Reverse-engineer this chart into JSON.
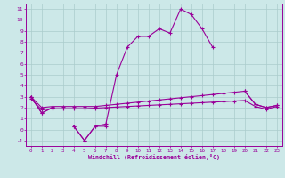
{
  "xlabel": "Windchill (Refroidissement éolien,°C)",
  "x_values": [
    0,
    1,
    2,
    3,
    4,
    5,
    6,
    7,
    8,
    9,
    10,
    11,
    12,
    13,
    14,
    15,
    16,
    17,
    18,
    19,
    20,
    21,
    22,
    23
  ],
  "line_zigzag": [
    3.0,
    1.5,
    2.0,
    null,
    0.3,
    -1.0,
    0.3,
    0.3,
    null,
    null,
    null,
    null,
    null,
    null,
    null,
    null,
    null,
    null,
    null,
    null,
    null,
    null,
    null,
    null
  ],
  "line_peak": [
    3.0,
    1.5,
    2.0,
    null,
    0.3,
    -1.0,
    0.3,
    0.5,
    5.0,
    7.5,
    8.5,
    8.5,
    9.2,
    8.8,
    11.0,
    10.5,
    9.2,
    7.5,
    null,
    null,
    3.5,
    2.3,
    2.0,
    2.2
  ],
  "line_upper": [
    3.0,
    2.0,
    2.1,
    2.1,
    2.1,
    2.1,
    2.1,
    2.2,
    2.3,
    2.4,
    2.5,
    2.6,
    2.7,
    2.8,
    2.9,
    3.0,
    3.1,
    3.2,
    3.3,
    3.4,
    3.5,
    2.3,
    2.0,
    2.2
  ],
  "line_lower": [
    2.8,
    1.8,
    1.9,
    1.9,
    1.9,
    1.9,
    1.95,
    2.0,
    2.05,
    2.1,
    2.15,
    2.2,
    2.25,
    2.3,
    2.35,
    2.4,
    2.45,
    2.5,
    2.55,
    2.6,
    2.65,
    2.1,
    1.85,
    2.1
  ],
  "line_color": "#990099",
  "bg_color": "#cce8e8",
  "grid_color": "#aacccc",
  "ylim": [
    -1.5,
    11.5
  ],
  "xlim": [
    -0.5,
    23.5
  ],
  "yticks": [
    -1,
    0,
    1,
    2,
    3,
    4,
    5,
    6,
    7,
    8,
    9,
    10,
    11
  ],
  "xticks": [
    0,
    1,
    2,
    3,
    4,
    5,
    6,
    7,
    8,
    9,
    10,
    11,
    12,
    13,
    14,
    15,
    16,
    17,
    18,
    19,
    20,
    21,
    22,
    23
  ]
}
